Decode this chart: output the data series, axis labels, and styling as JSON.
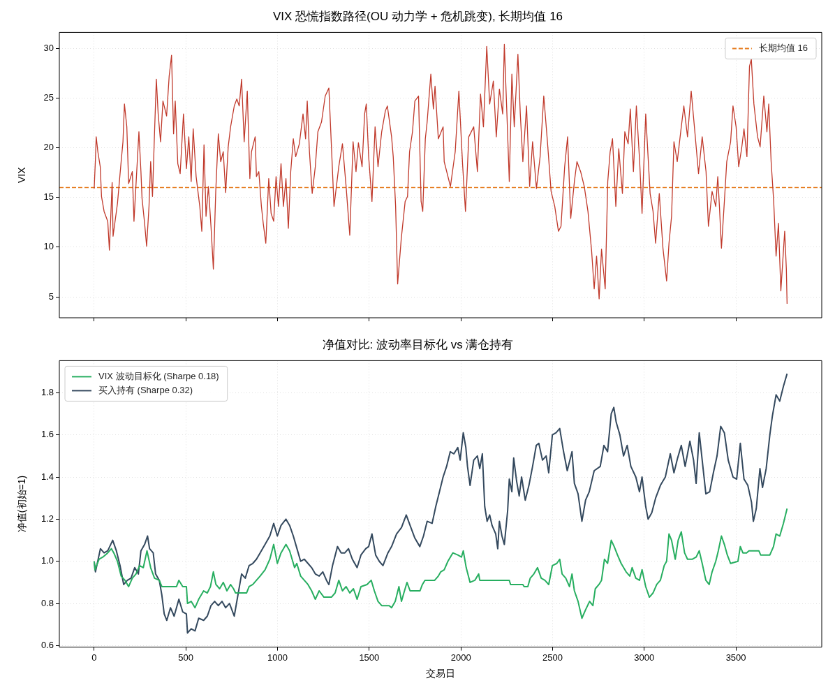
{
  "chart_data": [
    {
      "type": "line",
      "title": "VIX 恐慌指数路径(OU 动力学 + 危机跳变), 长期均值 16",
      "ylabel": "VIX",
      "legend": "top right",
      "grid": true,
      "tick_labels": "y",
      "xlim": [
        -190,
        3968
      ],
      "xticks": [
        0,
        500,
        1000,
        1500,
        2000,
        2500,
        3000,
        3500
      ],
      "ylim": [
        2.9,
        31.6
      ],
      "yticks": [
        5,
        10,
        15,
        20,
        25,
        30
      ],
      "ref_lines": [
        {
          "axis": "y",
          "value": 16,
          "label": "长期均值 16",
          "color": "#e67e22",
          "line_style": "dashed"
        }
      ],
      "series": [
        {
          "color": "#c0392b",
          "x": [
            0,
            7,
            11,
            20,
            33,
            40,
            54,
            74,
            83,
            98,
            103,
            127,
            147,
            157,
            165,
            178,
            188,
            208,
            217,
            232,
            244,
            255,
            261,
            275,
            286,
            299,
            308,
            318,
            328,
            339,
            349,
            362,
            375,
            395,
            409,
            422,
            433,
            442,
            456,
            469,
            487,
            503,
            516,
            529,
            540,
            556,
            576,
            587,
            599,
            610,
            623,
            637,
            650,
            663,
            677,
            690,
            704,
            717,
            731,
            744,
            764,
            778,
            791,
            804,
            818,
            835,
            849,
            858,
            878,
            885,
            898,
            912,
            922,
            936,
            952,
            965,
            979,
            992,
            1005,
            1019,
            1032,
            1046,
            1059,
            1072,
            1086,
            1099,
            1119,
            1139,
            1153,
            1162,
            1174,
            1189,
            1206,
            1220,
            1240,
            1260,
            1280,
            1294,
            1308,
            1334,
            1354,
            1374,
            1394,
            1412,
            1428,
            1441,
            1461,
            1475,
            1484,
            1497,
            1515,
            1532,
            1548,
            1568,
            1588,
            1599,
            1622,
            1631,
            1644,
            1655,
            1675,
            1696,
            1709,
            1720,
            1736,
            1749,
            1769,
            1783,
            1792,
            1806,
            1816,
            1836,
            1850,
            1859,
            1877,
            1903,
            1909,
            1943,
            1969,
            1989,
            2009,
            2025,
            2043,
            2070,
            2090,
            2107,
            2123,
            2141,
            2157,
            2177,
            2193,
            2210,
            2228,
            2237,
            2251,
            2264,
            2278,
            2291,
            2311,
            2324,
            2338,
            2358,
            2375,
            2391,
            2412,
            2432,
            2452,
            2472,
            2492,
            2512,
            2532,
            2546,
            2566,
            2582,
            2599,
            2619,
            2633,
            2653,
            2673,
            2693,
            2713,
            2727,
            2740,
            2754,
            2767,
            2787,
            2801,
            2814,
            2827,
            2845,
            2861,
            2881,
            2894,
            2912,
            2924,
            2941,
            2957,
            2975,
            2988,
            3008,
            3032,
            3048,
            3062,
            3082,
            3102,
            3122,
            3135,
            3149,
            3162,
            3180,
            3202,
            3216,
            3236,
            3256,
            3276,
            3296,
            3316,
            3337,
            3350,
            3370,
            3390,
            3401,
            3410,
            3421,
            3437,
            3450,
            3471,
            3484,
            3501,
            3515,
            3531,
            3544,
            3560,
            3574,
            3584,
            3598,
            3618,
            3632,
            3652,
            3669,
            3679,
            3692,
            3706,
            3719,
            3732,
            3745,
            3766,
            3775,
            3779
          ],
          "values": [
            15.9,
            18.9,
            21.1,
            19.6,
            18.1,
            15.1,
            13.6,
            12.6,
            9.7,
            16.5,
            11.1,
            14.4,
            18.6,
            20.6,
            24.4,
            22.1,
            16.4,
            17.6,
            12.6,
            17.6,
            21.6,
            17.6,
            14.9,
            12.4,
            10.1,
            14.1,
            18.6,
            15.1,
            20.9,
            26.9,
            23.4,
            20.6,
            24.7,
            23.2,
            27.2,
            29.3,
            21.4,
            24.7,
            18.4,
            17.4,
            23.4,
            17.9,
            21.1,
            16.6,
            21.9,
            17.1,
            14.1,
            11.6,
            20.3,
            13.1,
            16.1,
            12.1,
            7.8,
            15.6,
            21.4,
            18.6,
            19.6,
            15.5,
            20.1,
            22.1,
            24.2,
            24.9,
            24.2,
            26.9,
            20.6,
            25.7,
            16.9,
            19.6,
            21.1,
            17.1,
            17.6,
            14.1,
            12.4,
            10.4,
            16.9,
            13.4,
            12.6,
            17.1,
            14.1,
            18.4,
            14.1,
            16.9,
            11.9,
            17.6,
            20.9,
            19.1,
            20.4,
            23.4,
            20.9,
            24.7,
            19.6,
            15.4,
            18.1,
            21.6,
            22.6,
            25.2,
            26.0,
            20.1,
            14.1,
            18.1,
            20.4,
            16.1,
            11.2,
            20.6,
            17.6,
            20.5,
            18.1,
            23.4,
            24.4,
            19.1,
            14.6,
            22.1,
            18.1,
            21.6,
            23.7,
            24.2,
            21.1,
            19.1,
            14.1,
            6.3,
            10.9,
            14.6,
            15.1,
            19.6,
            21.6,
            24.7,
            25.2,
            14.6,
            13.6,
            20.9,
            22.6,
            27.4,
            23.9,
            26.2,
            20.9,
            22.1,
            18.6,
            16.1,
            19.6,
            25.7,
            18.4,
            13.6,
            21.1,
            22.1,
            17.6,
            25.4,
            22.1,
            30.2,
            24.4,
            26.7,
            21.1,
            25.9,
            23.4,
            30.4,
            23.4,
            16.6,
            27.4,
            22.1,
            29.4,
            23.4,
            18.6,
            24.2,
            16.1,
            20.6,
            15.9,
            19.1,
            25.2,
            20.6,
            15.6,
            14.1,
            11.6,
            12.1,
            18.1,
            21.1,
            12.9,
            16.6,
            18.6,
            17.6,
            16.1,
            13.6,
            9.6,
            5.8,
            9.1,
            4.8,
            9.8,
            5.8,
            16.6,
            19.6,
            20.9,
            14.1,
            19.9,
            15.4,
            21.6,
            20.4,
            23.9,
            17.6,
            24.2,
            18.6,
            13.4,
            23.4,
            15.4,
            13.6,
            10.4,
            15.4,
            9.9,
            6.6,
            10.4,
            13.1,
            20.6,
            18.6,
            22.1,
            24.2,
            21.1,
            25.7,
            21.6,
            17.4,
            21.1,
            17.6,
            12.1,
            15.6,
            14.1,
            17.1,
            14.1,
            9.9,
            14.6,
            18.6,
            20.6,
            24.2,
            22.1,
            18.1,
            19.9,
            21.9,
            19.1,
            28.2,
            28.9,
            24.4,
            21.1,
            20.1,
            25.2,
            21.6,
            24.4,
            18.6,
            14.6,
            9.1,
            12.4,
            5.6,
            11.6,
            7.8,
            4.3
          ]
        }
      ]
    },
    {
      "type": "line",
      "title": "净值对比: 波动率目标化 vs 满仓持有",
      "xlabel": "交易日",
      "ylabel": "净值(初始=1)",
      "legend": "top left",
      "grid": true,
      "xlim": [
        -190,
        3968
      ],
      "xticks": [
        0,
        500,
        1000,
        1500,
        2000,
        2500,
        3000,
        3500
      ],
      "ylim": [
        0.593,
        1.952
      ],
      "yticks": [
        0.6,
        0.8,
        {
          "value": 1,
          "label": "1.0"
        },
        1.2,
        1.4,
        1.6,
        1.8
      ],
      "series": [
        {
          "name": "VIX 波动目标化 (Sharpe 0.18)",
          "color": "#27ae60",
          "x": [
            0,
            4,
            27,
            47,
            74,
            94,
            107,
            127,
            147,
            168,
            188,
            208,
            228,
            248,
            268,
            288,
            308,
            329,
            355,
            369,
            449,
            462,
            483,
            503,
            509,
            529,
            550,
            570,
            597,
            617,
            634,
            650,
            664,
            684,
            704,
            724,
            744,
            760,
            771,
            791,
            831,
            845,
            865,
            885,
            905,
            932,
            958,
            979,
            999,
            1019,
            1046,
            1066,
            1093,
            1105,
            1126,
            1146,
            1166,
            1186,
            1206,
            1227,
            1253,
            1294,
            1314,
            1334,
            1354,
            1374,
            1394,
            1414,
            1434,
            1455,
            1488,
            1511,
            1528,
            1548,
            1568,
            1609,
            1622,
            1642,
            1662,
            1676,
            1689,
            1706,
            1723,
            1737,
            1777,
            1790,
            1804,
            1857,
            1877,
            1890,
            1909,
            1929,
            1956,
            1983,
            2003,
            2013,
            2029,
            2050,
            2076,
            2097,
            2103,
            2264,
            2271,
            2338,
            2345,
            2365,
            2378,
            2398,
            2418,
            2438,
            2458,
            2479,
            2499,
            2523,
            2539,
            2552,
            2572,
            2592,
            2606,
            2619,
            2639,
            2660,
            2680,
            2702,
            2720,
            2733,
            2753,
            2767,
            2783,
            2800,
            2820,
            2836,
            2854,
            2874,
            2901,
            2921,
            2934,
            2954,
            2974,
            2988,
            3008,
            3028,
            3048,
            3068,
            3088,
            3109,
            3122,
            3135,
            3149,
            3169,
            3185,
            3202,
            3220,
            3236,
            3263,
            3283,
            3300,
            3316,
            3336,
            3354,
            3370,
            3390,
            3404,
            3421,
            3437,
            3453,
            3471,
            3511,
            3524,
            3538,
            3558,
            3571,
            3625,
            3635,
            3685,
            3705,
            3719,
            3739,
            3759,
            3779
          ],
          "values": [
            1.0,
            0.96,
            1.01,
            1.02,
            1.04,
            1.06,
            1.04,
            1.0,
            0.93,
            0.91,
            0.88,
            0.92,
            0.94,
            0.98,
            0.97,
            1.05,
            0.97,
            0.92,
            0.91,
            0.88,
            0.88,
            0.91,
            0.88,
            0.88,
            0.8,
            0.81,
            0.78,
            0.82,
            0.86,
            0.85,
            0.88,
            0.95,
            0.89,
            0.87,
            0.9,
            0.86,
            0.89,
            0.87,
            0.85,
            0.85,
            0.85,
            0.88,
            0.89,
            0.91,
            0.93,
            0.96,
            1.01,
            1.08,
            0.99,
            1.04,
            1.08,
            1.05,
            0.97,
            0.99,
            0.93,
            0.91,
            0.89,
            0.86,
            0.82,
            0.86,
            0.83,
            0.83,
            0.85,
            0.91,
            0.86,
            0.88,
            0.85,
            0.87,
            0.82,
            0.88,
            0.89,
            0.91,
            0.86,
            0.81,
            0.79,
            0.79,
            0.78,
            0.81,
            0.88,
            0.81,
            0.85,
            0.9,
            0.86,
            0.86,
            0.86,
            0.89,
            0.91,
            0.91,
            0.93,
            0.95,
            0.96,
            1.0,
            1.04,
            1.03,
            1.02,
            1.05,
            0.97,
            0.9,
            0.91,
            0.94,
            0.91,
            0.91,
            0.89,
            0.89,
            0.88,
            0.88,
            0.92,
            0.94,
            0.97,
            0.92,
            0.91,
            0.89,
            0.98,
            0.99,
            1.01,
            0.94,
            0.92,
            0.88,
            0.94,
            0.86,
            0.81,
            0.73,
            0.77,
            0.81,
            0.79,
            0.87,
            0.89,
            0.91,
            1.01,
            0.99,
            1.1,
            1.07,
            1.03,
            0.99,
            0.95,
            0.93,
            0.97,
            0.92,
            0.91,
            0.96,
            0.88,
            0.83,
            0.85,
            0.89,
            0.91,
            0.98,
            1.0,
            1.13,
            1.1,
            1.01,
            1.1,
            1.14,
            1.04,
            1.01,
            1.01,
            1.02,
            1.05,
            0.99,
            0.91,
            0.89,
            0.95,
            1.0,
            1.05,
            1.12,
            1.08,
            1.03,
            0.99,
            1.0,
            1.07,
            1.04,
            1.04,
            1.05,
            1.05,
            1.03,
            1.03,
            1.07,
            1.13,
            1.12,
            1.18,
            1.25
          ]
        },
        {
          "name": "买入持有 (Sharpe 0.32)",
          "color": "#34495e",
          "x": [
            0,
            7,
            34,
            54,
            74,
            101,
            121,
            141,
            161,
            181,
            201,
            221,
            241,
            255,
            275,
            291,
            302,
            322,
            335,
            355,
            369,
            382,
            396,
            416,
            436,
            462,
            483,
            503,
            509,
            529,
            550,
            570,
            597,
            617,
            637,
            657,
            677,
            697,
            717,
            738,
            764,
            784,
            804,
            824,
            845,
            865,
            885,
            905,
            932,
            958,
            979,
            999,
            1019,
            1046,
            1066,
            1086,
            1106,
            1126,
            1146,
            1166,
            1186,
            1206,
            1227,
            1247,
            1267,
            1280,
            1300,
            1327,
            1347,
            1367,
            1387,
            1408,
            1434,
            1455,
            1481,
            1497,
            1515,
            1535,
            1555,
            1575,
            1602,
            1622,
            1649,
            1676,
            1702,
            1723,
            1749,
            1776,
            1796,
            1816,
            1843,
            1863,
            1883,
            1903,
            1922,
            1942,
            1962,
            1983,
            1996,
            2013,
            2027,
            2036,
            2050,
            2070,
            2090,
            2103,
            2117,
            2130,
            2143,
            2157,
            2170,
            2190,
            2201,
            2210,
            2224,
            2237,
            2255,
            2264,
            2278,
            2288,
            2304,
            2318,
            2331,
            2351,
            2371,
            2391,
            2411,
            2425,
            2445,
            2465,
            2479,
            2499,
            2519,
            2539,
            2560,
            2580,
            2606,
            2619,
            2639,
            2660,
            2680,
            2700,
            2727,
            2760,
            2780,
            2800,
            2820,
            2834,
            2847,
            2867,
            2887,
            2907,
            2927,
            2954,
            2974,
            2988,
            3008,
            3021,
            3041,
            3062,
            3088,
            3115,
            3142,
            3162,
            3182,
            3202,
            3223,
            3249,
            3269,
            3283,
            3300,
            3316,
            3336,
            3357,
            3377,
            3397,
            3417,
            3437,
            3458,
            3484,
            3504,
            3524,
            3544,
            3565,
            3585,
            3595,
            3611,
            3631,
            3645,
            3665,
            3685,
            3699,
            3719,
            3739,
            3759,
            3779
          ],
          "values": [
            1.0,
            0.95,
            1.06,
            1.04,
            1.05,
            1.1,
            1.05,
            0.98,
            0.89,
            0.91,
            0.92,
            0.97,
            0.94,
            1.05,
            1.08,
            1.12,
            1.06,
            1.04,
            0.94,
            0.91,
            0.84,
            0.75,
            0.72,
            0.78,
            0.74,
            0.82,
            0.76,
            0.75,
            0.66,
            0.68,
            0.67,
            0.73,
            0.72,
            0.74,
            0.79,
            0.81,
            0.79,
            0.81,
            0.78,
            0.8,
            0.74,
            0.84,
            0.94,
            0.92,
            0.98,
            0.99,
            1.01,
            1.04,
            1.08,
            1.12,
            1.18,
            1.12,
            1.17,
            1.2,
            1.17,
            1.12,
            1.06,
            1.0,
            1.01,
            0.99,
            0.97,
            0.94,
            0.93,
            0.95,
            0.91,
            0.89,
            0.98,
            1.07,
            1.04,
            1.04,
            1.06,
            1.01,
            0.97,
            1.03,
            1.06,
            1.07,
            1.13,
            1.03,
            1.0,
            0.98,
            1.04,
            1.07,
            1.13,
            1.16,
            1.22,
            1.17,
            1.11,
            1.07,
            1.12,
            1.19,
            1.18,
            1.26,
            1.33,
            1.4,
            1.45,
            1.52,
            1.51,
            1.54,
            1.48,
            1.61,
            1.54,
            1.45,
            1.36,
            1.48,
            1.5,
            1.44,
            1.51,
            1.26,
            1.19,
            1.22,
            1.17,
            1.13,
            1.06,
            1.19,
            1.12,
            1.08,
            1.24,
            1.39,
            1.33,
            1.49,
            1.38,
            1.31,
            1.4,
            1.29,
            1.36,
            1.45,
            1.55,
            1.56,
            1.48,
            1.5,
            1.42,
            1.6,
            1.61,
            1.63,
            1.52,
            1.43,
            1.52,
            1.37,
            1.32,
            1.19,
            1.29,
            1.33,
            1.43,
            1.45,
            1.55,
            1.52,
            1.7,
            1.73,
            1.66,
            1.6,
            1.5,
            1.55,
            1.45,
            1.4,
            1.33,
            1.4,
            1.26,
            1.2,
            1.23,
            1.3,
            1.36,
            1.4,
            1.51,
            1.42,
            1.49,
            1.55,
            1.45,
            1.57,
            1.48,
            1.37,
            1.61,
            1.48,
            1.32,
            1.33,
            1.42,
            1.5,
            1.64,
            1.61,
            1.48,
            1.4,
            1.39,
            1.56,
            1.39,
            1.36,
            1.28,
            1.19,
            1.25,
            1.44,
            1.35,
            1.44,
            1.6,
            1.69,
            1.79,
            1.76,
            1.83,
            1.89
          ]
        }
      ]
    }
  ]
}
